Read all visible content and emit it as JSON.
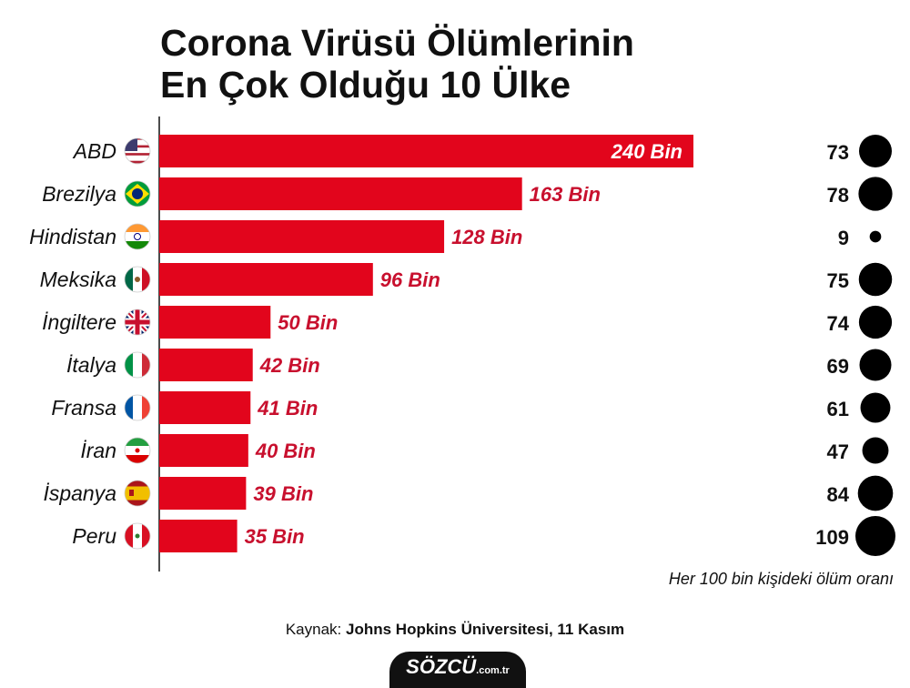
{
  "title_lines": [
    "Corona Virüsü Ölümlerinin",
    "En Çok Olduğu 10 Ülke"
  ],
  "chart_data": {
    "type": "bar",
    "orientation": "horizontal",
    "categories": [
      "ABD",
      "Brezilya",
      "Hindistan",
      "Meksika",
      "İngiltere",
      "İtalya",
      "Fransa",
      "İran",
      "İspanya",
      "Peru"
    ],
    "series": [
      {
        "values": [
          240,
          163,
          128,
          96,
          50,
          42,
          41,
          40,
          39,
          35
        ]
      }
    ],
    "data_labels": [
      "240 Bin",
      "163 Bin",
      "128 Bin",
      "96 Bin",
      "50 Bin",
      "42 Bin",
      "41 Bin",
      "40 Bin",
      "39 Bin",
      "35 Bin"
    ],
    "secondary_values": [
      73,
      78,
      9,
      75,
      74,
      69,
      61,
      47,
      84,
      109
    ],
    "secondary_label": "Her 100 bin kişideki ölüm oranı",
    "flags": [
      "us-flag-icon",
      "brazil-flag-icon",
      "india-flag-icon",
      "mexico-flag-icon",
      "uk-flag-icon",
      "italy-flag-icon",
      "france-flag-icon",
      "iran-flag-icon",
      "spain-flag-icon",
      "peru-flag-icon"
    ],
    "bar_color": "#e2051c",
    "label_color": "#c8102e",
    "grid": false
  },
  "source": {
    "prefix": "Kaynak:",
    "text": "Johns Hopkins Üniversitesi, 11 Kasım"
  },
  "logo": {
    "main": "SÖZCÜ",
    "domain": ".com.tr"
  }
}
